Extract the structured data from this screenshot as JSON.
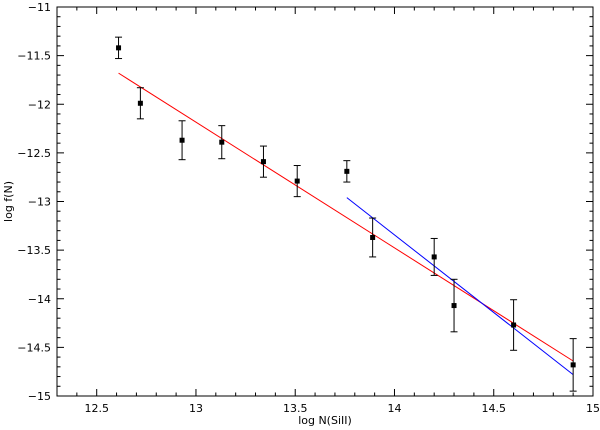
{
  "chart_data": {
    "type": "scatter",
    "xlabel": "log  N(SiII)",
    "ylabel": "log  f(N)",
    "xlim": [
      12.3,
      15.0
    ],
    "ylim": [
      -15.0,
      -11.0
    ],
    "x_ticks": [
      12.5,
      13,
      13.5,
      14,
      14.5,
      15
    ],
    "x_tick_labels": [
      "12.5",
      "13",
      "13.5",
      "14",
      "14.5",
      "15"
    ],
    "y_ticks": [
      -11,
      -11.5,
      -12,
      -12.5,
      -13,
      -13.5,
      -14,
      -14.5,
      -15
    ],
    "y_tick_labels": [
      "−11",
      "−11.5",
      "−12",
      "−12.5",
      "−13",
      "−13.5",
      "−14",
      "−14.5",
      "−15"
    ],
    "grid": false,
    "series": [
      {
        "marker": "square",
        "color": "#000000",
        "points": [
          {
            "x": 12.61,
            "y": -11.42,
            "err": 0.11
          },
          {
            "x": 12.72,
            "y": -11.99,
            "err": 0.16
          },
          {
            "x": 12.93,
            "y": -12.37,
            "err": 0.2
          },
          {
            "x": 13.13,
            "y": -12.39,
            "err": 0.17
          },
          {
            "x": 13.34,
            "y": -12.59,
            "err": 0.16
          },
          {
            "x": 13.51,
            "y": -12.79,
            "err": 0.16
          },
          {
            "x": 13.76,
            "y": -12.69,
            "err": 0.11
          },
          {
            "x": 13.89,
            "y": -13.37,
            "err": 0.2
          },
          {
            "x": 14.2,
            "y": -13.57,
            "err": 0.19
          },
          {
            "x": 14.3,
            "y": -14.07,
            "err": 0.27
          },
          {
            "x": 14.6,
            "y": -14.27,
            "err": 0.26
          },
          {
            "x": 14.9,
            "y": -14.68,
            "err": 0.27
          }
        ]
      }
    ],
    "fit_lines": [
      {
        "color": "#ff0000",
        "x": [
          12.61,
          14.9
        ],
        "y": [
          -11.68,
          -14.64
        ]
      },
      {
        "color": "#0000ff",
        "x": [
          13.76,
          14.9
        ],
        "y": [
          -12.96,
          -14.78
        ]
      }
    ]
  }
}
